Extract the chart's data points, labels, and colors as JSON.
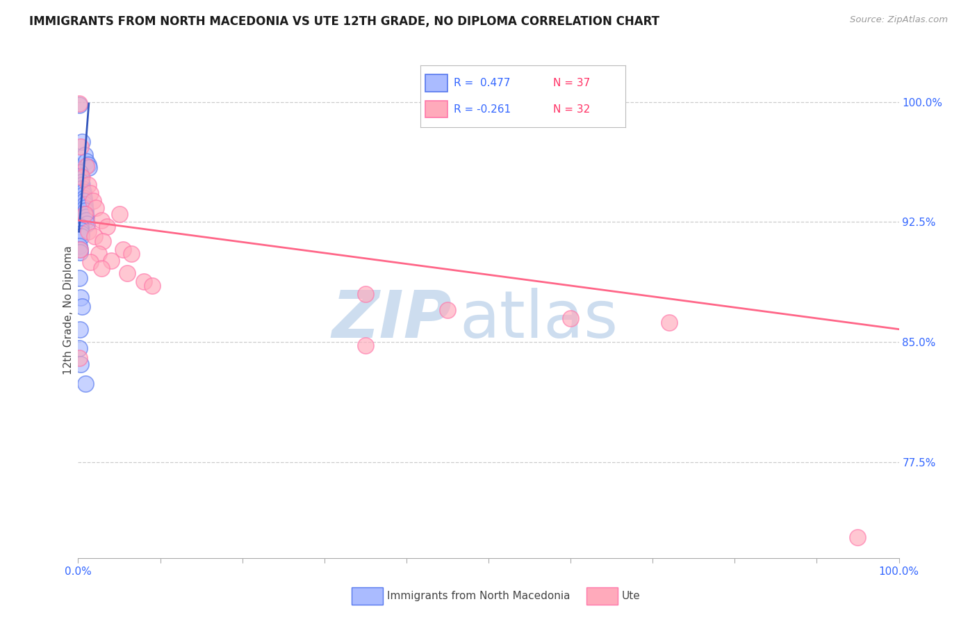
{
  "title": "IMMIGRANTS FROM NORTH MACEDONIA VS UTE 12TH GRADE, NO DIPLOMA CORRELATION CHART",
  "source": "Source: ZipAtlas.com",
  "ylabel": "12th Grade, No Diploma",
  "yaxis_labels": [
    "77.5%",
    "85.0%",
    "92.5%",
    "100.0%"
  ],
  "yaxis_values": [
    0.775,
    0.85,
    0.925,
    1.0
  ],
  "legend_blue_r": "R =  0.477",
  "legend_blue_n": "N = 37",
  "legend_pink_r": "R = -0.261",
  "legend_pink_n": "N = 32",
  "legend_blue_label": "Immigrants from North Macedonia",
  "legend_pink_label": "Ute",
  "blue_fill": "#aabbff",
  "blue_edge": "#5577ee",
  "pink_fill": "#ffaabb",
  "pink_edge": "#ff77aa",
  "blue_line_color": "#3355bb",
  "pink_line_color": "#ff6688",
  "watermark_zip_color": "#c5d8ed",
  "watermark_atlas_color": "#c5d8ed",
  "blue_r_color": "#3366ff",
  "blue_n_color": "#ff3366",
  "pink_r_color": "#3366ff",
  "pink_n_color": "#ff3366",
  "tick_label_color": "#3366ff",
  "blue_dots": [
    [
      0.001,
      0.998
    ],
    [
      0.005,
      0.975
    ],
    [
      0.008,
      0.967
    ],
    [
      0.01,
      0.963
    ],
    [
      0.012,
      0.961
    ],
    [
      0.013,
      0.959
    ],
    [
      0.002,
      0.956
    ],
    [
      0.003,
      0.954
    ],
    [
      0.004,
      0.952
    ],
    [
      0.004,
      0.95
    ],
    [
      0.005,
      0.948
    ],
    [
      0.005,
      0.946
    ],
    [
      0.006,
      0.944
    ],
    [
      0.006,
      0.942
    ],
    [
      0.007,
      0.94
    ],
    [
      0.007,
      0.938
    ],
    [
      0.008,
      0.936
    ],
    [
      0.008,
      0.934
    ],
    [
      0.009,
      0.932
    ],
    [
      0.009,
      0.93
    ],
    [
      0.01,
      0.928
    ],
    [
      0.01,
      0.926
    ],
    [
      0.011,
      0.924
    ],
    [
      0.003,
      0.922
    ],
    [
      0.003,
      0.92
    ],
    [
      0.004,
      0.918
    ],
    [
      0.004,
      0.916
    ],
    [
      0.001,
      0.91
    ],
    [
      0.002,
      0.908
    ],
    [
      0.002,
      0.906
    ],
    [
      0.001,
      0.89
    ],
    [
      0.003,
      0.878
    ],
    [
      0.005,
      0.872
    ],
    [
      0.002,
      0.858
    ],
    [
      0.001,
      0.846
    ],
    [
      0.003,
      0.836
    ],
    [
      0.009,
      0.824
    ]
  ],
  "pink_dots": [
    [
      0.001,
      0.999
    ],
    [
      0.003,
      0.972
    ],
    [
      0.01,
      0.96
    ],
    [
      0.005,
      0.953
    ],
    [
      0.012,
      0.948
    ],
    [
      0.015,
      0.943
    ],
    [
      0.018,
      0.938
    ],
    [
      0.022,
      0.934
    ],
    [
      0.008,
      0.93
    ],
    [
      0.028,
      0.926
    ],
    [
      0.035,
      0.922
    ],
    [
      0.012,
      0.919
    ],
    [
      0.02,
      0.916
    ],
    [
      0.03,
      0.913
    ],
    [
      0.002,
      0.908
    ],
    [
      0.025,
      0.905
    ],
    [
      0.04,
      0.901
    ],
    [
      0.05,
      0.93
    ],
    [
      0.055,
      0.908
    ],
    [
      0.065,
      0.905
    ],
    [
      0.015,
      0.9
    ],
    [
      0.028,
      0.896
    ],
    [
      0.06,
      0.893
    ],
    [
      0.08,
      0.888
    ],
    [
      0.09,
      0.885
    ],
    [
      0.35,
      0.88
    ],
    [
      0.45,
      0.87
    ],
    [
      0.6,
      0.865
    ],
    [
      0.72,
      0.862
    ],
    [
      0.35,
      0.848
    ],
    [
      0.001,
      0.84
    ],
    [
      0.95,
      0.728
    ]
  ],
  "blue_trendline_x": [
    0.001,
    0.013
  ],
  "blue_trendline_y": [
    0.919,
    0.999
  ],
  "pink_trendline_x": [
    0.001,
    1.0
  ],
  "pink_trendline_y": [
    0.926,
    0.858
  ],
  "xlim": [
    0.0,
    1.0
  ],
  "ylim": [
    0.715,
    1.025
  ],
  "dot_size": 280
}
